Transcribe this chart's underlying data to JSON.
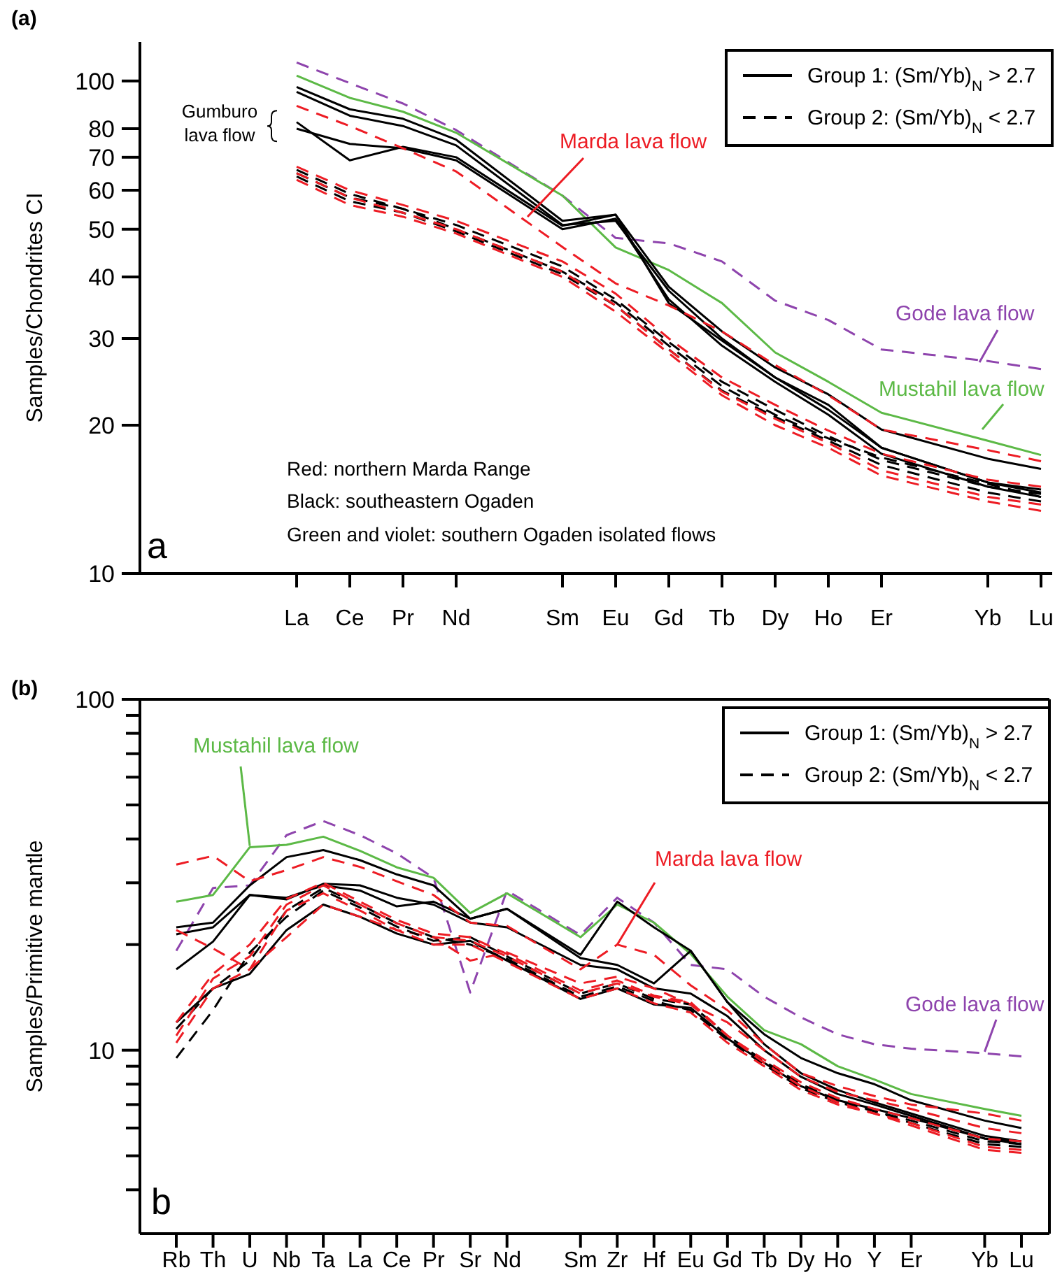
{
  "chart_data": [
    {
      "type": "line",
      "title": "(a)",
      "ylabel": "Samples/Chondrites CI",
      "log": true,
      "legend": "top right",
      "categories": [
        "La",
        "Ce",
        "Pr",
        "Nd",
        null,
        "Sm",
        "Eu",
        "Gd",
        "Tb",
        "Dy",
        "Ho",
        "Er",
        null,
        "Yb",
        "Lu"
      ],
      "ylim": [
        10,
        120
      ],
      "yticks": [
        10,
        20,
        30,
        40,
        50,
        60,
        70,
        80,
        100
      ],
      "series": [
        {
          "color": "#8e44ad",
          "line_style": "dashed",
          "values": [
            109,
            99,
            90,
            79.5,
            null,
            58.5,
            48,
            46.8,
            43,
            35.8,
            32.7,
            28.5,
            null,
            27,
            26
          ]
        },
        {
          "color": "#5cb946",
          "line_style": "solid",
          "values": [
            102.5,
            92.4,
            86.6,
            78.5,
            null,
            58.5,
            45.9,
            41.3,
            35.4,
            28.1,
            24.5,
            21.2,
            null,
            18.6,
            17.4
          ]
        },
        {
          "name": "Group 1: (Sm/Yb)$_{N}$ > 2.7",
          "color": "#000000",
          "line_style": "solid",
          "values": [
            97.2,
            87.6,
            83.8,
            76,
            null,
            52,
            53.5,
            38.2,
            31,
            26.2,
            23.1,
            19.6,
            null,
            17.1,
            16.3
          ]
        },
        {
          "color": "#000000",
          "line_style": "solid",
          "values": [
            95,
            85,
            81,
            74,
            null,
            51,
            52,
            37.5,
            30,
            25,
            22,
            18,
            null,
            15.3,
            14.8
          ]
        },
        {
          "color": "#000000",
          "line_style": "solid",
          "values": [
            82.5,
            69,
            73.5,
            70,
            null,
            50.8,
            53.5,
            35.4,
            29.7,
            25,
            21.5,
            18,
            null,
            15.3,
            14.6
          ]
        },
        {
          "color": "#000000",
          "line_style": "solid",
          "values": [
            80,
            74.5,
            73,
            69,
            null,
            50,
            52.5,
            36,
            29,
            24.5,
            21,
            17.5,
            null,
            15,
            14.3
          ]
        },
        {
          "color": "#ed1c24",
          "line_style": "dashed",
          "values": [
            89,
            81,
            73,
            65.5,
            null,
            46,
            38.8,
            35,
            31,
            26.5,
            23,
            19.6,
            null,
            17.8,
            16.9
          ]
        },
        {
          "name": "Group 2: (Sm/Yb)$_{N}$ < 2.7",
          "color": "#000000",
          "line_style": "dashed",
          "values": [
            66,
            59,
            55,
            51,
            null,
            42,
            36,
            29.5,
            24.5,
            21.5,
            19,
            17,
            null,
            15,
            14.5
          ]
        },
        {
          "color": "#000000",
          "line_style": "dashed",
          "values": [
            64,
            57,
            54,
            49.5,
            null,
            40.5,
            35,
            28.5,
            23.5,
            20.8,
            18.6,
            16.6,
            null,
            14.6,
            14
          ]
        },
        {
          "color": "#000000",
          "line_style": "dashed",
          "values": [
            65,
            58,
            55,
            50,
            null,
            41,
            35.5,
            29,
            24,
            21,
            18.8,
            17.2,
            null,
            15.2,
            14.3
          ]
        },
        {
          "color": "#ed1c24",
          "line_style": "dashed",
          "values": [
            67,
            60,
            56,
            52,
            null,
            43,
            37,
            30,
            25,
            22,
            19.5,
            17.5,
            null,
            15.5,
            15
          ]
        },
        {
          "color": "#ed1c24",
          "line_style": "dashed",
          "values": [
            65,
            58,
            54,
            50,
            null,
            41,
            35,
            28.5,
            23.4,
            20.6,
            18.4,
            16.2,
            null,
            14.3,
            13.8
          ]
        },
        {
          "color": "#ed1c24",
          "line_style": "dashed",
          "values": [
            63,
            56,
            53,
            49,
            null,
            40,
            34,
            28,
            23,
            20,
            18,
            15.8,
            null,
            14,
            13.4
          ]
        }
      ],
      "annotations": [
        {
          "text": "Gumburo lava flow",
          "x": "La",
          "y": 81
        },
        "Marda lava flow",
        "Gode lava flow",
        "Mustahil lava flow",
        "Red: northern Marda Range",
        "Black: southeastern Ogaden",
        "Green and violet: southern Ogaden isolated flows",
        "a"
      ]
    },
    {
      "type": "line",
      "title": "(b)",
      "ylabel": "Samples/Primitive mantle",
      "log": true,
      "legend": "top right",
      "categories": [
        "Rb",
        "Th",
        "U",
        "Nb",
        "Ta",
        "La",
        "Ce",
        "Pr",
        "Sr",
        "Nd",
        null,
        "Sm",
        "Zr",
        "Hf",
        "Eu",
        "Gd",
        "Tb",
        "Dy",
        "Ho",
        "Y",
        "Er",
        null,
        "Yb",
        "Lu"
      ],
      "ylim": [
        3,
        100
      ],
      "yticks": [
        {
          "value": 4,
          "label": null
        },
        {
          "value": 5,
          "label": null
        },
        {
          "value": 6,
          "label": null
        },
        {
          "value": 7,
          "label": null
        },
        {
          "value": 8,
          "label": null
        },
        {
          "value": 9,
          "label": null
        },
        10,
        {
          "value": 20,
          "label": null
        },
        {
          "value": 30,
          "label": null
        },
        {
          "value": 40,
          "label": null
        },
        {
          "value": 50,
          "label": null
        },
        {
          "value": 60,
          "label": null
        },
        {
          "value": 70,
          "label": null
        },
        {
          "value": 80,
          "label": null
        },
        {
          "value": 90,
          "label": null
        },
        100
      ],
      "series": [
        {
          "color": "#8e44ad",
          "line_style": "dashed",
          "values": [
            19.2,
            29,
            29.5,
            41,
            45,
            41,
            36.4,
            31,
            14.6,
            28.5,
            null,
            21.3,
            27.2,
            23.1,
            17.5,
            17,
            14.2,
            12.4,
            11.1,
            10.4,
            10.1,
            null,
            9.8,
            9.6
          ]
        },
        {
          "color": "#5cb946",
          "line_style": "solid",
          "values": [
            26.5,
            27.7,
            37.9,
            38.5,
            40.6,
            37,
            33.2,
            31,
            24.6,
            28,
            null,
            21,
            26,
            23.1,
            18.8,
            14.2,
            11.4,
            10.4,
            9,
            8.25,
            7.5,
            null,
            6.8,
            6.5
          ]
        },
        {
          "name": "Group 1: (Sm/Yb)$_{N}$ > 2.7",
          "color": "#000000",
          "line_style": "solid",
          "values": [
            22.4,
            23.1,
            29.5,
            35.5,
            37.2,
            34.8,
            31.7,
            29.5,
            23.7,
            25.3,
            null,
            18.7,
            26.5,
            22.4,
            19.2,
            13.7,
            11.1,
            9.5,
            8.6,
            8,
            7.2,
            null,
            6.3,
            6
          ]
        },
        {
          "color": "#000000",
          "line_style": "solid",
          "values": [
            17,
            20.4,
            27.7,
            27.2,
            29.5,
            28.5,
            25.7,
            26.5,
            23.7,
            25.3,
            null,
            18.3,
            17.5,
            15.5,
            19.2,
            13.7,
            10.4,
            8.6,
            7.7,
            7.1,
            6.6,
            null,
            5.7,
            5.5
          ]
        },
        {
          "color": "#000000",
          "line_style": "solid",
          "values": [
            21.4,
            22.4,
            27.7,
            26.9,
            29.8,
            29.5,
            27.2,
            26,
            23.1,
            22.4,
            null,
            17.5,
            17,
            15,
            14.5,
            12.5,
            10,
            8.4,
            7.5,
            7,
            6.5,
            null,
            5.6,
            5.4
          ]
        },
        {
          "color": "#000000",
          "line_style": "solid",
          "values": [
            12,
            15,
            16.5,
            22,
            26,
            24,
            21.5,
            20,
            20.5,
            18,
            null,
            14,
            15,
            13.5,
            13.2,
            10.8,
            9.2,
            7.9,
            7.2,
            6.8,
            6.4,
            null,
            5.6,
            5.5
          ]
        },
        {
          "color": "#ed1c24",
          "line_style": "dashed",
          "values": [
            33.8,
            35.8,
            30.3,
            32.6,
            35.5,
            33.3,
            30.3,
            27.7,
            23.1,
            22.6,
            null,
            17,
            20,
            18.7,
            15.3,
            13,
            10.4,
            8.6,
            7.9,
            7.4,
            7,
            null,
            6.6,
            6.3
          ]
        },
        {
          "color": "#ed1c24",
          "line_style": "dashed",
          "values": [
            22,
            19.5,
            17,
            21,
            26,
            24,
            22,
            21,
            18,
            19,
            null,
            15.5,
            16.2,
            15,
            13.5,
            12,
            10,
            8.4,
            7.6,
            7.2,
            6.8,
            null,
            6,
            5.8
          ]
        },
        {
          "name": "Group 2: (Sm/Yb)$_{N}$ < 2.7",
          "color": "#000000",
          "line_style": "dashed",
          "values": [
            9.5,
            13,
            19,
            24,
            28.5,
            25.5,
            22.5,
            20.5,
            21,
            18.5,
            null,
            14.5,
            15.5,
            14,
            13.5,
            11,
            9.3,
            8,
            7.2,
            6.7,
            6.3,
            null,
            5.5,
            5.4
          ]
        },
        {
          "color": "#000000",
          "line_style": "dashed",
          "values": [
            11.5,
            15,
            18,
            25,
            29,
            26,
            23,
            21,
            20,
            18.2,
            null,
            14.2,
            15.2,
            13.8,
            13,
            10.7,
            9.1,
            7.8,
            7.1,
            6.7,
            6.2,
            null,
            5.4,
            5.3
          ]
        },
        {
          "color": "#ed1c24",
          "line_style": "dashed",
          "values": [
            11,
            16,
            18.5,
            26,
            29.5,
            26,
            23,
            21,
            20.5,
            18.5,
            null,
            14.5,
            15.5,
            14.2,
            13.5,
            11,
            9.2,
            7.9,
            7.1,
            6.6,
            6.2,
            null,
            5.3,
            5.2
          ]
        },
        {
          "color": "#ed1c24",
          "line_style": "dashed",
          "values": [
            12,
            16.5,
            20,
            27,
            30,
            26.5,
            23.5,
            21.5,
            21,
            18.8,
            null,
            14.8,
            15.8,
            14.3,
            13.7,
            11,
            9.4,
            8.1,
            7.3,
            6.8,
            6.4,
            null,
            5.6,
            5.5
          ]
        },
        {
          "color": "#ed1c24",
          "line_style": "dashed",
          "values": [
            10.5,
            15,
            17,
            25,
            28,
            25,
            22,
            20,
            20,
            17.8,
            null,
            14,
            15,
            13.6,
            12.8,
            10.5,
            9,
            7.7,
            7,
            6.6,
            6.1,
            null,
            5.2,
            5.1
          ]
        }
      ],
      "annotations": [
        {
          "text": "Mustahil lava flow",
          "x": "U",
          "y": 38.2
        },
        {
          "text": "Marda lava flow",
          "x": "Zr",
          "y": 20
        },
        {
          "text": "Gode lava flow",
          "x": "Yb",
          "y": 9.9
        },
        "b"
      ]
    }
  ]
}
